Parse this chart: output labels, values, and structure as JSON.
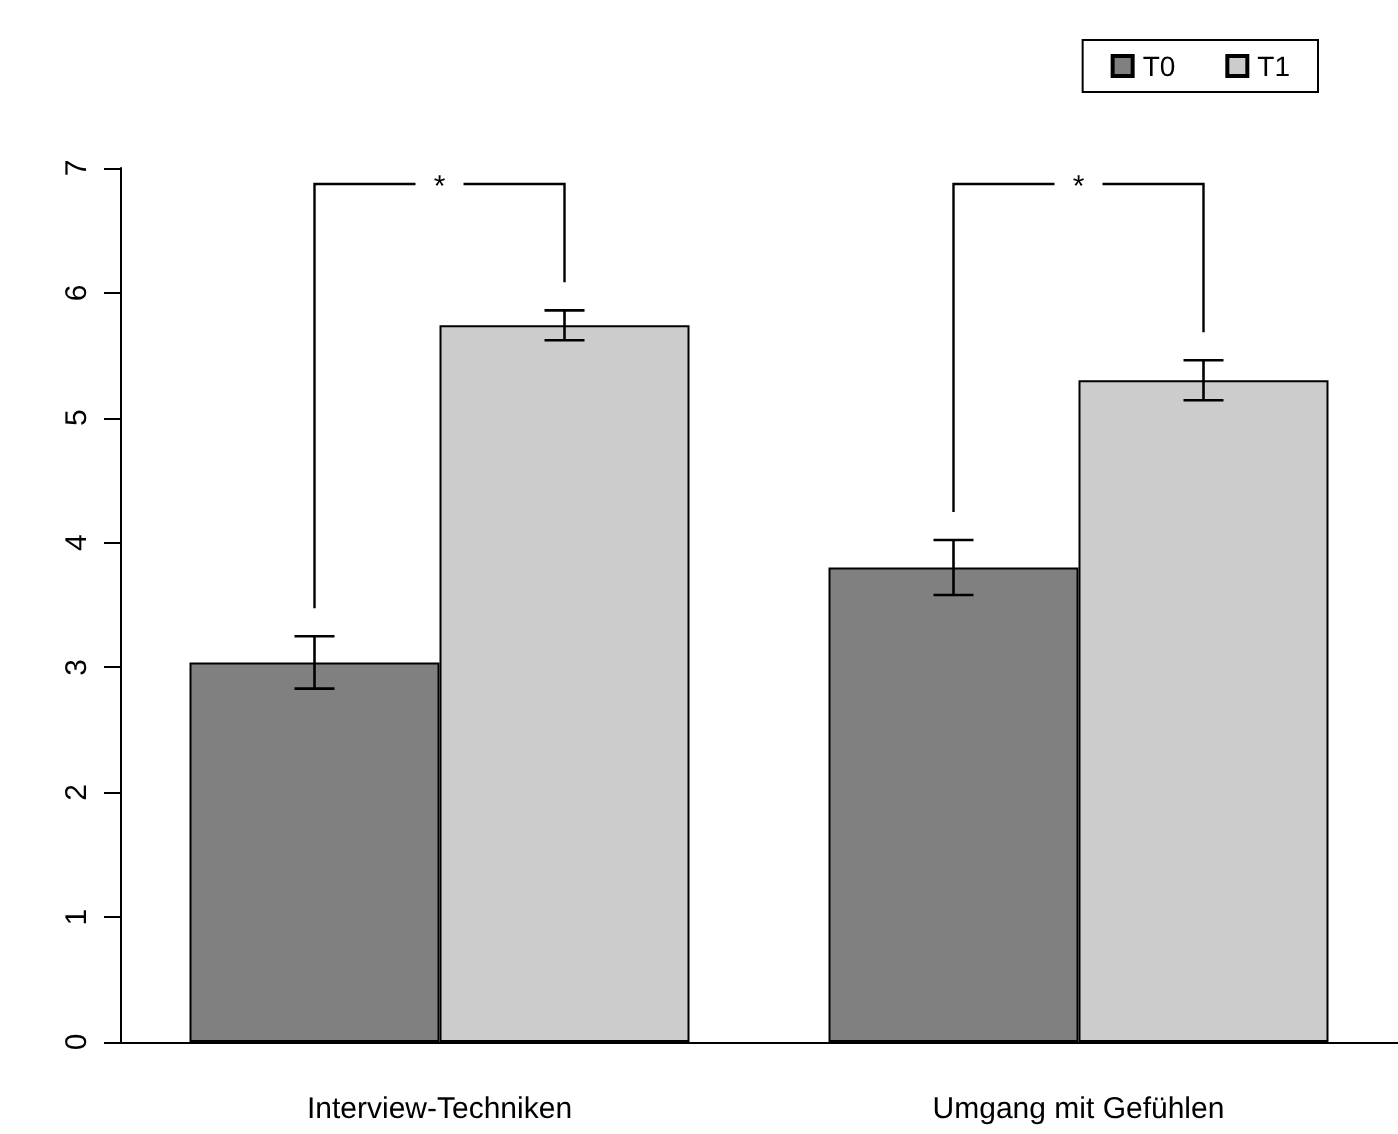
{
  "chart_data": {
    "type": "bar",
    "categories": [
      "Interview-Techniken",
      "Umgang mit Gefühlen"
    ],
    "series": [
      {
        "name": "T0",
        "color": "#808080",
        "values": [
          3.04,
          3.8
        ],
        "errors": [
          0.21,
          0.22
        ]
      },
      {
        "name": "T1",
        "color": "#cccccc",
        "values": [
          5.74,
          5.3
        ],
        "errors": [
          0.12,
          0.16
        ]
      }
    ],
    "ylim": [
      0,
      7
    ],
    "yticks": [
      0,
      1,
      2,
      3,
      4,
      5,
      6,
      7
    ],
    "grid": false,
    "legend": "top right",
    "annotations": [
      "*",
      "*"
    ]
  }
}
